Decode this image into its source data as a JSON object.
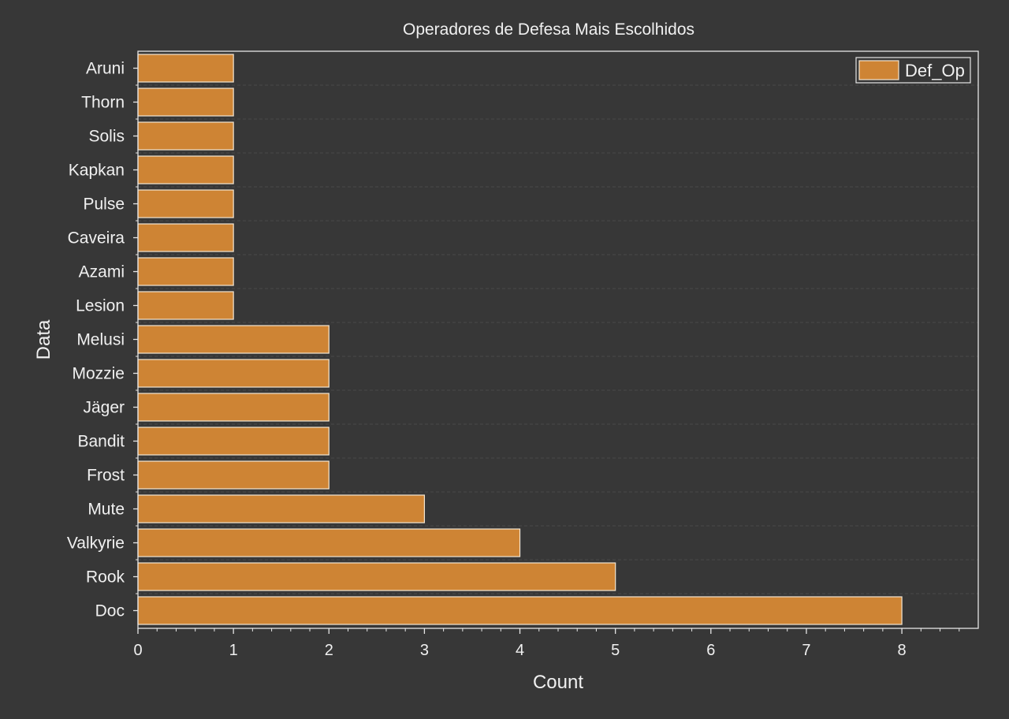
{
  "chart_data": {
    "type": "bar",
    "orientation": "horizontal",
    "title": "Operadores de Defesa Mais Escolhidos",
    "xlabel": "Count",
    "ylabel": "Data",
    "categories": [
      "Doc",
      "Rook",
      "Valkyrie",
      "Mute",
      "Frost",
      "Bandit",
      "Jäger",
      "Mozzie",
      "Melusi",
      "Lesion",
      "Azami",
      "Caveira",
      "Pulse",
      "Kapkan",
      "Solis",
      "Thorn",
      "Aruni"
    ],
    "series": [
      {
        "name": "Def_Op",
        "values": [
          8,
          5,
          4,
          3,
          2,
          2,
          2,
          2,
          2,
          1,
          1,
          1,
          1,
          1,
          1,
          1,
          1
        ],
        "color": "#CE8434"
      }
    ],
    "xlim": [
      0,
      8.8
    ],
    "xticks": [
      0,
      1,
      2,
      3,
      4,
      5,
      6,
      7,
      8
    ],
    "grid": true,
    "legend": "top-right"
  },
  "colors": {
    "background": "#373737",
    "axis": "#e6e6e6",
    "text": "#f0f0f0",
    "bar_fill": "#CE8434",
    "bar_edge": "#f3e6d2",
    "grid": "#4a4a4a"
  }
}
